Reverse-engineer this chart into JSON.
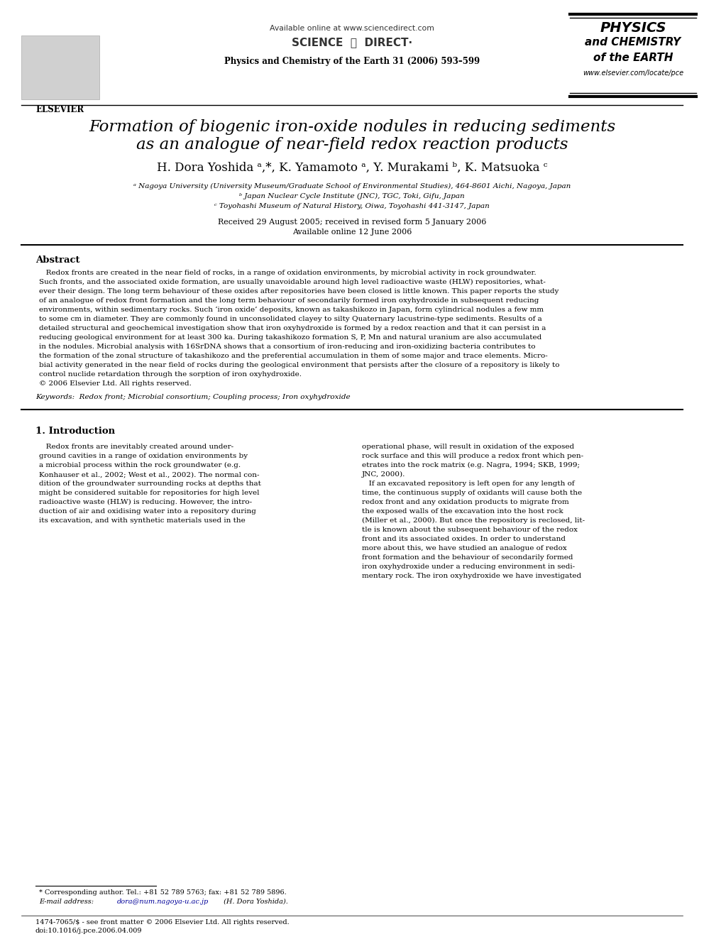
{
  "bg_color": "#ffffff",
  "avail_online_text": "Available online at www.sciencedirect.com",
  "scidir_text": "SCIENCE  ⓓ  DIRECT·",
  "journal_title": "Physics and Chemistry of the Earth 31 (2006) 593–599",
  "journal_box_lines": [
    "PHYSICS",
    "and CHEMISTRY",
    "of the EARTH"
  ],
  "website": "www.elsevier.com/locate/pce",
  "paper_title_line1": "Formation of biogenic iron-oxide nodules in reducing sediments",
  "paper_title_line2": "as an analogue of near-field redox reaction products",
  "authors_line": "H. Dora Yoshida a,*, K. Yamamoto a, Y. Murakami b, K. Matsuoka c",
  "affil_a": "ᵃ Nagoya University (University Museum/Graduate School of Environmental Studies), 464-8601 Aichi, Nagoya, Japan",
  "affil_b": "ᵇ Japan Nuclear Cycle Institute (JNC), TGC, Toki, Gifu, Japan",
  "affil_c": "ᶜ Toyohashi Museum of Natural History, Oiwa, Toyohashi 441-3147, Japan",
  "dates_line": "Received 29 August 2005; received in revised form 5 January 2006",
  "avail_line": "Available online 12 June 2006",
  "abstract_heading": "Abstract",
  "abstract_body": [
    "   Redox fronts are created in the near field of rocks, in a range of oxidation environments, by microbial activity in rock groundwater.",
    "Such fronts, and the associated oxide formation, are usually unavoidable around high level radioactive waste (HLW) repositories, what-",
    "ever their design. The long term behaviour of these oxides after repositories have been closed is little known. This paper reports the study",
    "of an analogue of redox front formation and the long term behaviour of secondarily formed iron oxyhydroxide in subsequent reducing",
    "environments, within sedimentary rocks. Such ‘iron oxide’ deposits, known as takashikozo in Japan, form cylindrical nodules a few mm",
    "to some cm in diameter. They are commonly found in unconsolidated clayey to silty Quaternary lacustrine-type sediments. Results of a",
    "detailed structural and geochemical investigation show that iron oxyhydroxide is formed by a redox reaction and that it can persist in a",
    "reducing geological environment for at least 300 ka. During takashikozo formation S, P, Mn and natural uranium are also accumulated",
    "in the nodules. Microbial analysis with 16SrDNA shows that a consortium of iron-reducing and iron-oxidizing bacteria contributes to",
    "the formation of the zonal structure of takashikozo and the preferential accumulation in them of some major and trace elements. Micro-",
    "bial activity generated in the near field of rocks during the geological environment that persists after the closure of a repository is likely to",
    "control nuclide retardation through the sorption of iron oxyhydroxide.",
    "© 2006 Elsevier Ltd. All rights reserved."
  ],
  "keywords_line": "Keywords:  Redox front; Microbial consortium; Coupling process; Iron oxyhydroxide",
  "section1_heading": "1. Introduction",
  "intro_left_lines": [
    "   Redox fronts are inevitably created around under-",
    "ground cavities in a range of oxidation environments by",
    "a microbial process within the rock groundwater (e.g.",
    "Konhauser et al., 2002; West et al., 2002). The normal con-",
    "dition of the groundwater surrounding rocks at depths that",
    "might be considered suitable for repositories for high level",
    "radioactive waste (HLW) is reducing. However, the intro-",
    "duction of air and oxidising water into a repository during",
    "its excavation, and with synthetic materials used in the"
  ],
  "intro_right_lines": [
    "operational phase, will result in oxidation of the exposed",
    "rock surface and this will produce a redox front which pen-",
    "etrates into the rock matrix (e.g. Nagra, 1994; SKB, 1999;",
    "JNC, 2000).",
    "   If an excavated repository is left open for any length of",
    "time, the continuous supply of oxidants will cause both the",
    "redox front and any oxidation products to migrate from",
    "the exposed walls of the excavation into the host rock",
    "(Miller et al., 2000). But once the repository is reclosed, lit-",
    "tle is known about the subsequent behaviour of the redox",
    "front and its associated oxides. In order to understand",
    "more about this, we have studied an analogue of redox",
    "front formation and the behaviour of secondarily formed",
    "iron oxyhydroxide under a reducing environment in sedi-",
    "mentary rock. The iron oxyhydroxide we have investigated"
  ],
  "footnote_star": "* Corresponding author. Tel.: +81 52 789 5763; fax: +81 52 789 5896.",
  "footnote_email_plain": "E-mail address: ",
  "footnote_email_link": "dora@num.nagoya-u.ac.jp",
  "footnote_email_end": " (H. Dora Yoshida).",
  "footer_issn": "1474-7065/$ - see front matter © 2006 Elsevier Ltd. All rights reserved.",
  "footer_doi": "doi:10.1016/j.pce.2006.04.009",
  "link_color": "#000099",
  "text_color": "#000000"
}
